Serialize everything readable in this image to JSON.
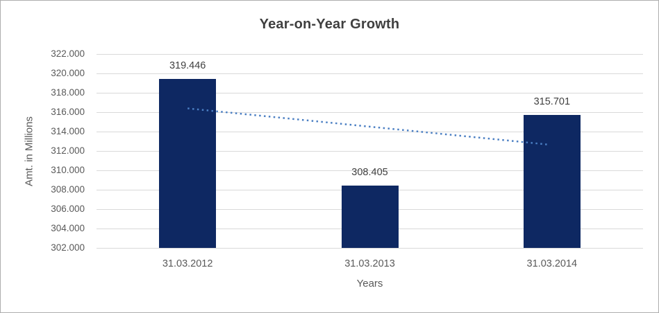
{
  "chart_data": {
    "type": "bar",
    "title": "Year-on-Year Growth",
    "xlabel": "Years",
    "ylabel": "Amt. in Millions",
    "categories": [
      "31.03.2012",
      "31.03.2013",
      "31.03.2014"
    ],
    "values": [
      319.446,
      308.405,
      315.701
    ],
    "data_labels": [
      "319.446",
      "308.405",
      "315.701"
    ],
    "y_ticks": [
      "322.000",
      "320.000",
      "318.000",
      "316.000",
      "314.000",
      "312.000",
      "310.000",
      "308.000",
      "306.000",
      "304.000",
      "302.000"
    ],
    "ylim": [
      302,
      322
    ],
    "grid": true,
    "legend": "none",
    "bar_color": "#0e2862",
    "gridline_color": "#d9d9d9",
    "trendline": {
      "type": "linear",
      "style": "dotted",
      "color": "#4b7fc3",
      "start_value": 316.39,
      "end_value": 312.65
    }
  }
}
